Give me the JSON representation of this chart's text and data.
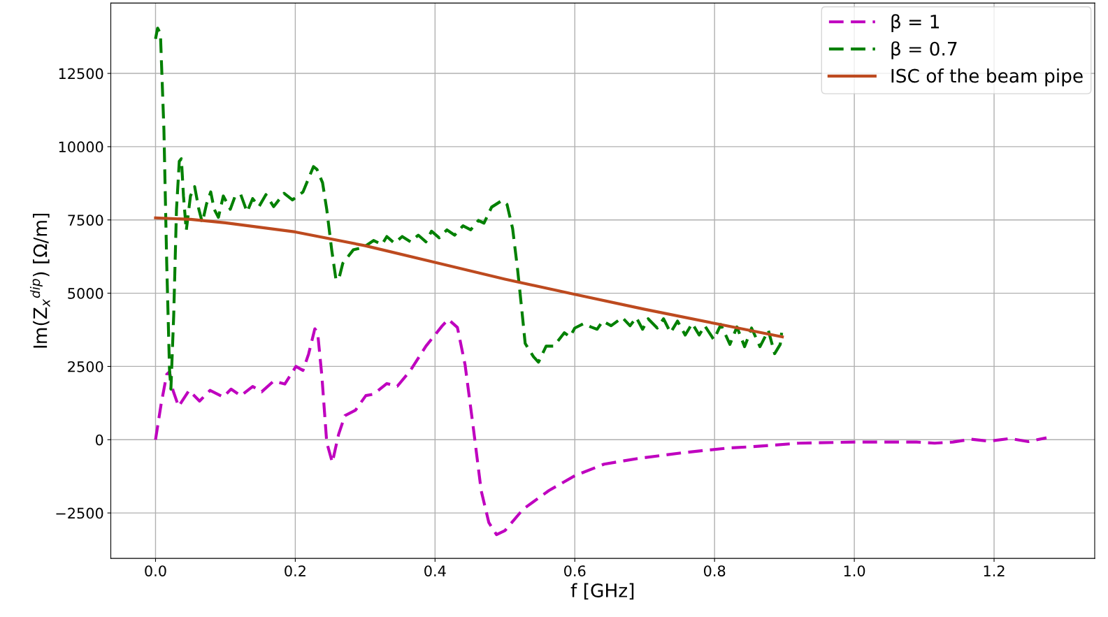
{
  "chart_data": {
    "type": "line",
    "xlabel": "f [GHz]",
    "ylabel": "Im(Z$_{x}$$^{dip}$) [Ω/m]",
    "xlim": [
      -0.064,
      1.344
    ],
    "ylim": [
      -4050,
      14900
    ],
    "xticks": [
      {
        "value": 0,
        "label": "0.0"
      },
      {
        "value": 0.2,
        "label": "0.2"
      },
      {
        "value": 0.4,
        "label": "0.4"
      },
      {
        "value": 0.6,
        "label": "0.6"
      },
      {
        "value": 0.8,
        "label": "0.8"
      },
      {
        "value": 1.0,
        "label": "1.0"
      },
      {
        "value": 1.2,
        "label": "1.2"
      }
    ],
    "yticks": [
      {
        "value": -2500,
        "label": "−2500"
      },
      0,
      2500,
      5000,
      7500,
      10000,
      12500
    ],
    "grid": true,
    "legend": "top right",
    "marker": "none",
    "series": [
      {
        "name": "β = 1",
        "color": "#bf00bf",
        "line_style": "dashed",
        "x": [
          0,
          0.008,
          0.016,
          0.02,
          0.025,
          0.033,
          0.048,
          0.063,
          0.078,
          0.097,
          0.108,
          0.122,
          0.139,
          0.152,
          0.169,
          0.185,
          0.201,
          0.211,
          0.219,
          0.228,
          0.232,
          0.238,
          0.245,
          0.253,
          0.262,
          0.271,
          0.286,
          0.301,
          0.312,
          0.331,
          0.346,
          0.365,
          0.387,
          0.41,
          0.419,
          0.432,
          0.443,
          0.455,
          0.466,
          0.477,
          0.488,
          0.5,
          0.526,
          0.563,
          0.6,
          0.642,
          0.692,
          0.757,
          0.822,
          0.855,
          0.92,
          1.0,
          1.057,
          1.089,
          1.115,
          1.141,
          1.167,
          1.193,
          1.223,
          1.249,
          1.275
        ],
        "values": [
          0,
          1214,
          2227,
          2318,
          1682,
          1136,
          1682,
          1318,
          1682,
          1455,
          1727,
          1500,
          1818,
          1636,
          2000,
          1900,
          2500,
          2364,
          2920,
          3786,
          3650,
          2190,
          -91,
          -776,
          182,
          821,
          1004,
          1505,
          1551,
          1916,
          1825,
          2372,
          3193,
          3878,
          4106,
          3832,
          2555,
          365,
          -1734,
          -2829,
          -3239,
          -3102,
          -2372,
          -1734,
          -1230,
          -833,
          -635,
          -437,
          -278,
          -238,
          -119,
          -79,
          -79,
          -79,
          -119,
          -79,
          16,
          -48,
          40,
          -64,
          64
        ]
      },
      {
        "name": "β = 0.7",
        "color": "#008000",
        "line_style": "dashed",
        "x": [
          0,
          0.003,
          0.007,
          0.012,
          0.016,
          0.02,
          0.022,
          0.026,
          0.03,
          0.034,
          0.037,
          0.04,
          0.044,
          0.05,
          0.056,
          0.062,
          0.067,
          0.073,
          0.079,
          0.084,
          0.09,
          0.097,
          0.107,
          0.114,
          0.122,
          0.131,
          0.139,
          0.148,
          0.158,
          0.169,
          0.184,
          0.196,
          0.211,
          0.226,
          0.231,
          0.239,
          0.245,
          0.252,
          0.258,
          0.262,
          0.268,
          0.283,
          0.298,
          0.312,
          0.324,
          0.331,
          0.342,
          0.353,
          0.365,
          0.376,
          0.387,
          0.395,
          0.406,
          0.417,
          0.428,
          0.44,
          0.451,
          0.462,
          0.47,
          0.481,
          0.496,
          0.503,
          0.511,
          0.518,
          0.524,
          0.529,
          0.541,
          0.548,
          0.559,
          0.57,
          0.585,
          0.593,
          0.6,
          0.613,
          0.623,
          0.632,
          0.64,
          0.652,
          0.668,
          0.679,
          0.688,
          0.697,
          0.705,
          0.718,
          0.727,
          0.737,
          0.747,
          0.758,
          0.768,
          0.778,
          0.786,
          0.799,
          0.809,
          0.822,
          0.832,
          0.843,
          0.853,
          0.865,
          0.877,
          0.886,
          0.894,
          0.896
        ],
        "values": [
          13681,
          14045,
          13863,
          10590,
          6045,
          2409,
          1727,
          4227,
          7863,
          9500,
          9590,
          8318,
          7136,
          8318,
          8636,
          7863,
          7409,
          8045,
          8454,
          7863,
          7590,
          8318,
          7863,
          8318,
          8363,
          7772,
          8227,
          7954,
          8363,
          7954,
          8409,
          8181,
          8454,
          9318,
          9227,
          8772,
          7863,
          6500,
          5500,
          5450,
          6022,
          6478,
          6569,
          6797,
          6660,
          6934,
          6706,
          6934,
          6751,
          6980,
          6751,
          7117,
          6889,
          7162,
          6980,
          7299,
          7162,
          7482,
          7390,
          7938,
          8166,
          8029,
          7208,
          5839,
          4471,
          3285,
          2828,
          2646,
          3193,
          3193,
          3650,
          3513,
          3810,
          3968,
          3849,
          3770,
          4048,
          3889,
          4167,
          3889,
          4167,
          3770,
          4127,
          3810,
          4127,
          3651,
          4048,
          3572,
          3968,
          3572,
          3889,
          3413,
          3929,
          3254,
          3849,
          3175,
          3810,
          3175,
          3730,
          2937,
          3254,
          3651
        ]
      },
      {
        "name": "ISC of the beam pipe",
        "color": "#bd4a1f",
        "line_style": "solid",
        "x": [
          0,
          0.05,
          0.1,
          0.2,
          0.3,
          0.4,
          0.5,
          0.6,
          0.7,
          0.8,
          0.897
        ],
        "values": [
          7570,
          7520,
          7400,
          7090,
          6620,
          6050,
          5480,
          4960,
          4450,
          3970,
          3510
        ]
      }
    ]
  }
}
